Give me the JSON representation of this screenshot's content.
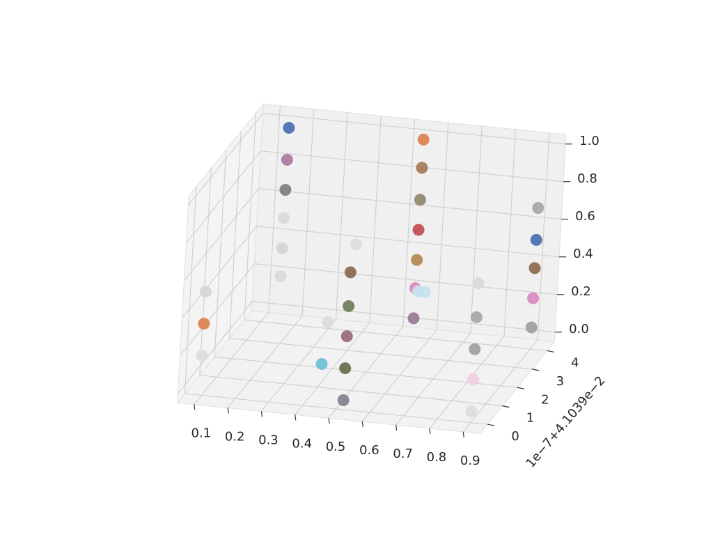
{
  "chart_data": {
    "type": "scatter3d",
    "x": [
      0.15,
      0.15,
      0.15,
      0.15,
      0.15,
      0.15,
      0.55,
      0.55,
      0.55,
      0.55,
      0.55,
      0.55,
      0.55,
      0.9,
      0.9,
      0.9,
      0.9,
      0.9,
      0.52,
      0.52,
      0.52,
      0.52,
      0.52,
      0.095,
      0.095,
      0.095,
      0.9,
      0.9,
      0.9,
      0.9,
      0.9,
      0.45,
      0.42,
      0.45,
      0.6,
      0.62
    ],
    "y": [
      4,
      4,
      4,
      4,
      4,
      4,
      4,
      4,
      4,
      4,
      4,
      4,
      4,
      4,
      4,
      4,
      4,
      4,
      0,
      0,
      0,
      0,
      0,
      0,
      0,
      0,
      0,
      0,
      0,
      0,
      0,
      2,
      1,
      0,
      3,
      3
    ],
    "z": [
      0.99,
      0.82,
      0.66,
      0.51,
      0.35,
      0.2,
      1.0,
      0.85,
      0.68,
      0.52,
      0.36,
      0.21,
      0.05,
      0.7,
      0.53,
      0.38,
      0.22,
      0.065,
      0.68,
      0.5,
      0.34,
      0.17,
      0.0,
      0.5,
      0.33,
      0.16,
      0.69,
      0.51,
      0.34,
      0.18,
      0.01,
      0.62,
      0.3,
      0.18,
      0.3,
      0.3
    ],
    "colors": [
      "#4c72b0",
      "#b07aa1",
      "#7f7f7f",
      "#d9d9d9",
      "#d4d4d4",
      "#d9d9d9",
      "#dd8452",
      "#a57c5b",
      "#8f8a6f",
      "#c44e52",
      "#b48a55",
      "#da8bc3",
      "#9a7b93",
      "#a8a8a8",
      "#4c72b0",
      "#8c6d4f",
      "#da8bc3",
      "#a0a0a0",
      "#8c6d4f",
      "#6f7f5a",
      "#9c6b7f",
      "#6f7050",
      "#82858f",
      "#d6d6d6",
      "#dd8452",
      "#dcdcdc",
      "#d9d9d9",
      "#a8a8a8",
      "#a0a0a0",
      "#f2cfe0",
      "#dcdcdc",
      "#dcdcdc",
      "#dcdcdc",
      "#6fc0d6",
      "#c5e3ee",
      "#c5e3ee"
    ],
    "xlim": [
      0.05,
      0.95
    ],
    "ylim": [
      -0.5,
      4.5
    ],
    "zlim": [
      -0.05,
      1.05
    ],
    "xticks": [
      0.1,
      0.2,
      0.3,
      0.4,
      0.5,
      0.6,
      0.7,
      0.8,
      0.9
    ],
    "yticks": [
      0,
      1,
      2,
      3,
      4
    ],
    "zticks": [
      {
        "value": 0,
        "label": "0.0"
      },
      {
        "value": 0.2,
        "label": "0.2"
      },
      {
        "value": 0.4,
        "label": "0.4"
      },
      {
        "value": 0.6,
        "label": "0.6"
      },
      {
        "value": 0.8,
        "label": "0.8"
      },
      {
        "value": 1,
        "label": "1.0"
      }
    ],
    "y_offset_label": "1e−7+4.1039e−2",
    "grid": true
  }
}
